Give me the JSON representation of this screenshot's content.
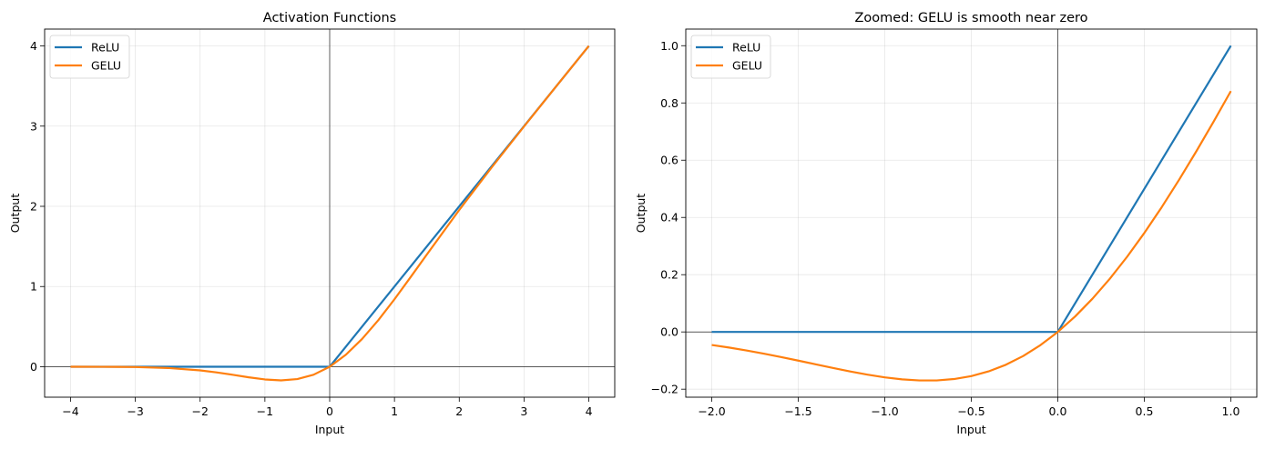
{
  "chart_data": [
    {
      "type": "line",
      "title": "Activation Functions",
      "xlabel": "Input",
      "ylabel": "Output",
      "xlim": [
        -4.4,
        4.4
      ],
      "ylim": [
        -0.38,
        4.21
      ],
      "xticks": [
        -4,
        -3,
        -2,
        -1,
        0,
        1,
        2,
        3,
        4
      ],
      "xtick_labels": [
        "−4",
        "−3",
        "−2",
        "−1",
        "0",
        "1",
        "2",
        "3",
        "4"
      ],
      "yticks": [
        0,
        1,
        2,
        3,
        4
      ],
      "ytick_labels": [
        "0",
        "1",
        "2",
        "3",
        "4"
      ],
      "grid": true,
      "legend": "upper-left",
      "reference_lines": {
        "x": 0,
        "y": 0
      },
      "series": [
        {
          "name": "ReLU",
          "color": "#1f77b4",
          "x": [
            -4,
            0,
            4
          ],
          "y": [
            0,
            0,
            4
          ]
        },
        {
          "name": "GELU",
          "color": "#ff7f0e",
          "x": [
            -4,
            -3.5,
            -3,
            -2.5,
            -2,
            -1.75,
            -1.5,
            -1.25,
            -1,
            -0.75,
            -0.5,
            -0.25,
            0,
            0.25,
            0.5,
            0.75,
            1,
            1.25,
            1.5,
            2,
            2.5,
            3,
            3.5,
            4
          ],
          "y": [
            -0.0001,
            -0.0008,
            -0.004,
            -0.0155,
            -0.0455,
            -0.0701,
            -0.1002,
            -0.132,
            -0.1587,
            -0.17,
            -0.1543,
            -0.1003,
            0,
            0.1497,
            0.3457,
            0.58,
            0.8413,
            1.118,
            1.3998,
            1.9545,
            2.4845,
            2.996,
            3.4992,
            3.9999
          ]
        }
      ]
    },
    {
      "type": "line",
      "title": "Zoomed: GELU is smooth near zero",
      "xlabel": "Input",
      "ylabel": "Output",
      "xlim": [
        -2.15,
        1.15
      ],
      "ylim": [
        -0.228,
        1.058
      ],
      "xticks": [
        -2,
        -1.5,
        -1,
        -0.5,
        0,
        0.5,
        1
      ],
      "xtick_labels": [
        "−2.0",
        "−1.5",
        "−1.0",
        "−0.5",
        "0.0",
        "0.5",
        "1.0"
      ],
      "yticks": [
        -0.2,
        0,
        0.2,
        0.4,
        0.6,
        0.8,
        1.0
      ],
      "ytick_labels": [
        "−0.2",
        "0.0",
        "0.2",
        "0.4",
        "0.6",
        "0.8",
        "1.0"
      ],
      "grid": true,
      "legend": "upper-left",
      "reference_lines": {
        "x": 0,
        "y": 0
      },
      "series": [
        {
          "name": "ReLU",
          "color": "#1f77b4",
          "x": [
            -2,
            0,
            1
          ],
          "y": [
            0,
            0,
            1
          ]
        },
        {
          "name": "GELU",
          "color": "#ff7f0e",
          "x": [
            -2,
            -1.9,
            -1.8,
            -1.7,
            -1.6,
            -1.5,
            -1.4,
            -1.3,
            -1.2,
            -1.1,
            -1,
            -0.9,
            -0.8,
            -0.7,
            -0.6,
            -0.5,
            -0.4,
            -0.3,
            -0.2,
            -0.1,
            0,
            0.1,
            0.2,
            0.3,
            0.4,
            0.5,
            0.6,
            0.7,
            0.8,
            0.9,
            1
          ],
          "y": [
            -0.0455,
            -0.0545,
            -0.0646,
            -0.0758,
            -0.0877,
            -0.1002,
            -0.1131,
            -0.1258,
            -0.1381,
            -0.1492,
            -0.1587,
            -0.1657,
            -0.1695,
            -0.1694,
            -0.1646,
            -0.1543,
            -0.1378,
            -0.1146,
            -0.0841,
            -0.046,
            0,
            0.054,
            0.1159,
            0.1854,
            0.2622,
            0.3457,
            0.4354,
            0.5306,
            0.6305,
            0.7343,
            0.8413
          ]
        }
      ]
    }
  ]
}
